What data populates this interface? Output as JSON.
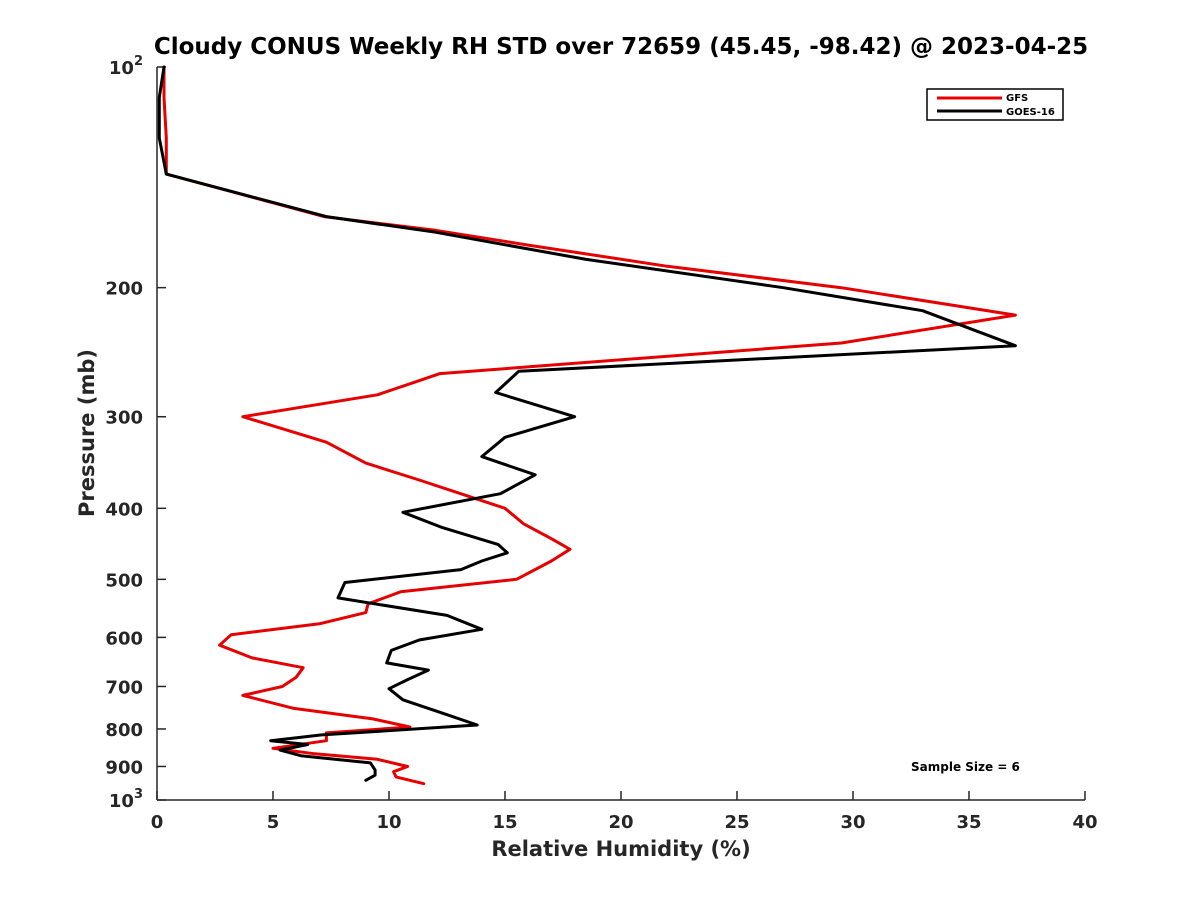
{
  "chart_data": {
    "type": "line",
    "title": "Cloudy CONUS Weekly RH STD over 72659 (45.45, -98.42) @ 2023-04-25",
    "xlabel": "Relative Humidity (%)",
    "ylabel": "Pressure (mb)",
    "xlim": [
      0,
      40
    ],
    "ylim": [
      100,
      1000
    ],
    "y_scale": "log",
    "y_reversed": true,
    "x_ticks": [
      "0",
      "5",
      "10",
      "15",
      "20",
      "25",
      "30",
      "35",
      "40"
    ],
    "y_ticks": [
      {
        "value": 100,
        "base": "10",
        "exp": "2"
      },
      {
        "value": 200,
        "label": "200"
      },
      {
        "value": 300,
        "label": "300"
      },
      {
        "value": 400,
        "label": "400"
      },
      {
        "value": 500,
        "label": "500"
      },
      {
        "value": 600,
        "label": "600"
      },
      {
        "value": 700,
        "label": "700"
      },
      {
        "value": 800,
        "label": "800"
      },
      {
        "value": 900,
        "label": "900"
      },
      {
        "value": 1000,
        "base": "10",
        "exp": "3"
      }
    ],
    "grid": false,
    "legend_position": "top-right",
    "series": [
      {
        "name": "GFS",
        "color": "#e60000",
        "points": [
          [
            0.3,
            100
          ],
          [
            0.3,
            110
          ],
          [
            0.4,
            125
          ],
          [
            0.4,
            140
          ],
          [
            7.2,
            160
          ],
          [
            12,
            167
          ],
          [
            16,
            175
          ],
          [
            22,
            187
          ],
          [
            29.5,
            200
          ],
          [
            37,
            218
          ],
          [
            29.5,
            238
          ],
          [
            12.2,
            262
          ],
          [
            9.5,
            280
          ],
          [
            3.7,
            300
          ],
          [
            7.3,
            325
          ],
          [
            9,
            347
          ],
          [
            11.3,
            366
          ],
          [
            13.3,
            384
          ],
          [
            15,
            400
          ],
          [
            15.8,
            420
          ],
          [
            17,
            440
          ],
          [
            17.8,
            455
          ],
          [
            17,
            472
          ],
          [
            15.5,
            500
          ],
          [
            10.5,
            520
          ],
          [
            9.1,
            540
          ],
          [
            9,
            555
          ],
          [
            7,
            575
          ],
          [
            3.2,
            595
          ],
          [
            2.7,
            615
          ],
          [
            4.1,
            640
          ],
          [
            6.3,
            660
          ],
          [
            6,
            680
          ],
          [
            5.4,
            700
          ],
          [
            3.7,
            720
          ],
          [
            5.9,
            750
          ],
          [
            9.3,
            775
          ],
          [
            10.9,
            795
          ],
          [
            7.3,
            810
          ],
          [
            7.3,
            830
          ],
          [
            5,
            850
          ],
          [
            6.8,
            865
          ],
          [
            9.5,
            880
          ],
          [
            10.8,
            900
          ],
          [
            10.2,
            915
          ],
          [
            10.3,
            930
          ],
          [
            11.5,
            950
          ]
        ]
      },
      {
        "name": "GOES-16",
        "color": "#000000",
        "points": [
          [
            0.3,
            100
          ],
          [
            0.1,
            110
          ],
          [
            0.1,
            125
          ],
          [
            0.4,
            140
          ],
          [
            7.3,
            160
          ],
          [
            12,
            168
          ],
          [
            18.5,
            183
          ],
          [
            27,
            200
          ],
          [
            33,
            215
          ],
          [
            37,
            240
          ],
          [
            15.6,
            260
          ],
          [
            14.6,
            278
          ],
          [
            18,
            300
          ],
          [
            15,
            320
          ],
          [
            14,
            340
          ],
          [
            16.3,
            360
          ],
          [
            14.8,
            382
          ],
          [
            10.6,
            405
          ],
          [
            12.3,
            425
          ],
          [
            14.7,
            448
          ],
          [
            15.1,
            460
          ],
          [
            14,
            472
          ],
          [
            13.1,
            485
          ],
          [
            8.1,
            505
          ],
          [
            7.8,
            530
          ],
          [
            12.5,
            560
          ],
          [
            14,
            585
          ],
          [
            11.3,
            605
          ],
          [
            10.1,
            625
          ],
          [
            9.9,
            650
          ],
          [
            11.7,
            665
          ],
          [
            10.8,
            685
          ],
          [
            10,
            705
          ],
          [
            10.6,
            730
          ],
          [
            12.5,
            765
          ],
          [
            13.8,
            790
          ],
          [
            7.1,
            815
          ],
          [
            4.9,
            830
          ],
          [
            6.5,
            840
          ],
          [
            5.3,
            855
          ],
          [
            6.2,
            870
          ],
          [
            9.2,
            890
          ],
          [
            9.4,
            910
          ],
          [
            9.4,
            925
          ],
          [
            9,
            940
          ]
        ]
      }
    ],
    "annotations": [
      "Sample Size = 6"
    ]
  }
}
